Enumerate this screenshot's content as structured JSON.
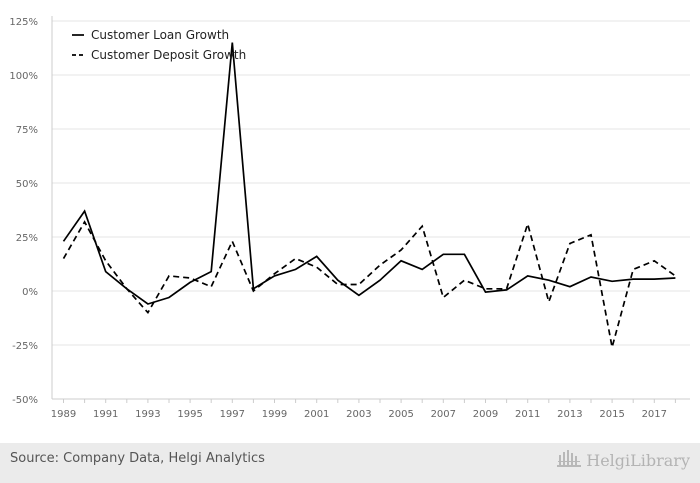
{
  "chart_data": {
    "type": "line",
    "x": [
      1989,
      1990,
      1991,
      1992,
      1993,
      1994,
      1995,
      1996,
      1997,
      1998,
      1999,
      2000,
      2001,
      2002,
      2003,
      2004,
      2005,
      2006,
      2007,
      2008,
      2009,
      2010,
      2011,
      2012,
      2013,
      2014,
      2015,
      2016,
      2017,
      2018
    ],
    "x_tick_labels": [
      "1989",
      "1991",
      "1993",
      "1995",
      "1997",
      "1999",
      "2001",
      "2003",
      "2005",
      "2007",
      "2009",
      "2011",
      "2013",
      "2015",
      "2017"
    ],
    "y_tick_labels": [
      "125%",
      "100%",
      "75%",
      "50%",
      "25%",
      "0%",
      "-25%",
      "-50%"
    ],
    "ylim": [
      -50,
      125
    ],
    "y_unit": "%",
    "grid": true,
    "legend_position": "top-left",
    "series": [
      {
        "name": "Customer Loan Growth",
        "style": "solid",
        "color": "#000000",
        "values": [
          23,
          37,
          9,
          1,
          -6,
          -3,
          4,
          9,
          115,
          1,
          7,
          10,
          16,
          5,
          -2,
          5,
          14,
          10,
          17,
          17,
          -0.5,
          0.5,
          7,
          5,
          2,
          6.5,
          4.5,
          5.5,
          5.5,
          6
        ]
      },
      {
        "name": "Customer Deposit Growth",
        "style": "dashed",
        "color": "#000000",
        "values": [
          15,
          32,
          14,
          1,
          -10,
          7,
          6,
          2,
          23,
          0,
          8,
          15,
          11,
          3,
          3,
          12,
          19,
          30,
          -3,
          5,
          1,
          1,
          31,
          -5,
          22,
          26,
          -26,
          10,
          14,
          7
        ]
      }
    ]
  },
  "footer": {
    "source": "Source: Company Data, Helgi Analytics",
    "logo_text": "HelgiLibrary"
  }
}
